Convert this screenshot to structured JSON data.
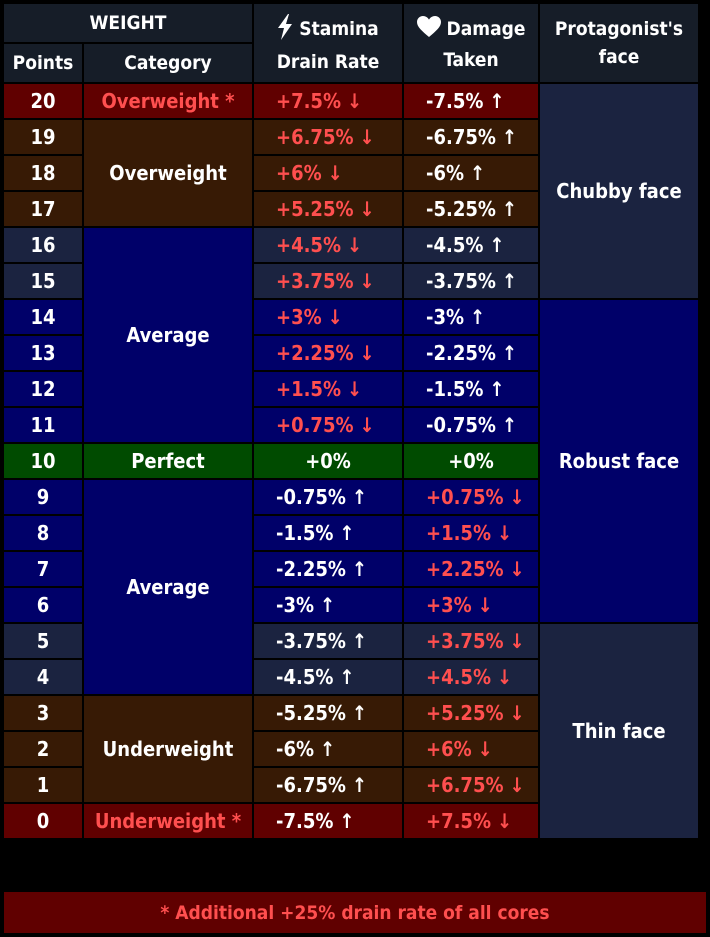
{
  "header": {
    "weight": "WEIGHT",
    "points": "Points",
    "category": "Category",
    "stamina_line1": "Stamina",
    "stamina_line2": "Drain Rate",
    "damage_line1": "Damage",
    "damage_line2": "Taken",
    "face_line1": "Protagonist's",
    "face_line2": "face",
    "stamina_icon": "lightning-bolt-icon",
    "damage_icon": "heart-icon"
  },
  "colors": {
    "red_row": "#600000",
    "brown_row": "#371a05",
    "slate_row": "#1b2340",
    "navy_row": "#000069",
    "green_row": "#004b00",
    "red_text": "#ff4f4f"
  },
  "categories": {
    "overweight_star": "Overweight *",
    "overweight": "Overweight",
    "average_upper": "Average",
    "perfect": "Perfect",
    "average_lower": "Average",
    "underweight": "Underweight",
    "underweight_star": "Underweight *"
  },
  "faces": {
    "chubby": "Chubby face",
    "robust": "Robust face",
    "thin": "Thin face"
  },
  "rows": [
    {
      "points": "20",
      "stamina": "+7.5%",
      "stamina_arrow": "↓",
      "damage": "-7.5%",
      "damage_arrow": "↑"
    },
    {
      "points": "19",
      "stamina": "+6.75%",
      "stamina_arrow": "↓",
      "damage": "-6.75%",
      "damage_arrow": "↑"
    },
    {
      "points": "18",
      "stamina": "+6%",
      "stamina_arrow": "↓",
      "damage": "-6%",
      "damage_arrow": "↑"
    },
    {
      "points": "17",
      "stamina": "+5.25%",
      "stamina_arrow": "↓",
      "damage": "-5.25%",
      "damage_arrow": "↑"
    },
    {
      "points": "16",
      "stamina": "+4.5%",
      "stamina_arrow": "↓",
      "damage": "-4.5%",
      "damage_arrow": "↑"
    },
    {
      "points": "15",
      "stamina": "+3.75%",
      "stamina_arrow": "↓",
      "damage": "-3.75%",
      "damage_arrow": "↑"
    },
    {
      "points": "14",
      "stamina": "+3%",
      "stamina_arrow": "↓",
      "damage": "-3%",
      "damage_arrow": "↑"
    },
    {
      "points": "13",
      "stamina": "+2.25%",
      "stamina_arrow": "↓",
      "damage": "-2.25%",
      "damage_arrow": "↑"
    },
    {
      "points": "12",
      "stamina": "+1.5%",
      "stamina_arrow": "↓",
      "damage": "-1.5%",
      "damage_arrow": "↑"
    },
    {
      "points": "11",
      "stamina": "+0.75%",
      "stamina_arrow": "↓",
      "damage": "-0.75%",
      "damage_arrow": "↑"
    },
    {
      "points": "10",
      "stamina": "+0%",
      "stamina_arrow": "",
      "damage": "+0%",
      "damage_arrow": ""
    },
    {
      "points": "9",
      "stamina": "-0.75%",
      "stamina_arrow": "↑",
      "damage": "+0.75%",
      "damage_arrow": "↓"
    },
    {
      "points": "8",
      "stamina": "-1.5%",
      "stamina_arrow": "↑",
      "damage": "+1.5%",
      "damage_arrow": "↓"
    },
    {
      "points": "7",
      "stamina": "-2.25%",
      "stamina_arrow": "↑",
      "damage": "+2.25%",
      "damage_arrow": "↓"
    },
    {
      "points": "6",
      "stamina": "-3%",
      "stamina_arrow": "↑",
      "damage": "+3%",
      "damage_arrow": "↓"
    },
    {
      "points": "5",
      "stamina": "-3.75%",
      "stamina_arrow": "↑",
      "damage": "+3.75%",
      "damage_arrow": "↓"
    },
    {
      "points": "4",
      "stamina": "-4.5%",
      "stamina_arrow": "↑",
      "damage": "+4.5%",
      "damage_arrow": "↓"
    },
    {
      "points": "3",
      "stamina": "-5.25%",
      "stamina_arrow": "↑",
      "damage": "+5.25%",
      "damage_arrow": "↓"
    },
    {
      "points": "2",
      "stamina": "-6%",
      "stamina_arrow": "↑",
      "damage": "+6%",
      "damage_arrow": "↓"
    },
    {
      "points": "1",
      "stamina": "-6.75%",
      "stamina_arrow": "↑",
      "damage": "+6.75%",
      "damage_arrow": "↓"
    },
    {
      "points": "0",
      "stamina": "-7.5%",
      "stamina_arrow": "↑",
      "damage": "+7.5%",
      "damage_arrow": "↓"
    }
  ],
  "footer": "* Additional +25% drain rate of all cores"
}
